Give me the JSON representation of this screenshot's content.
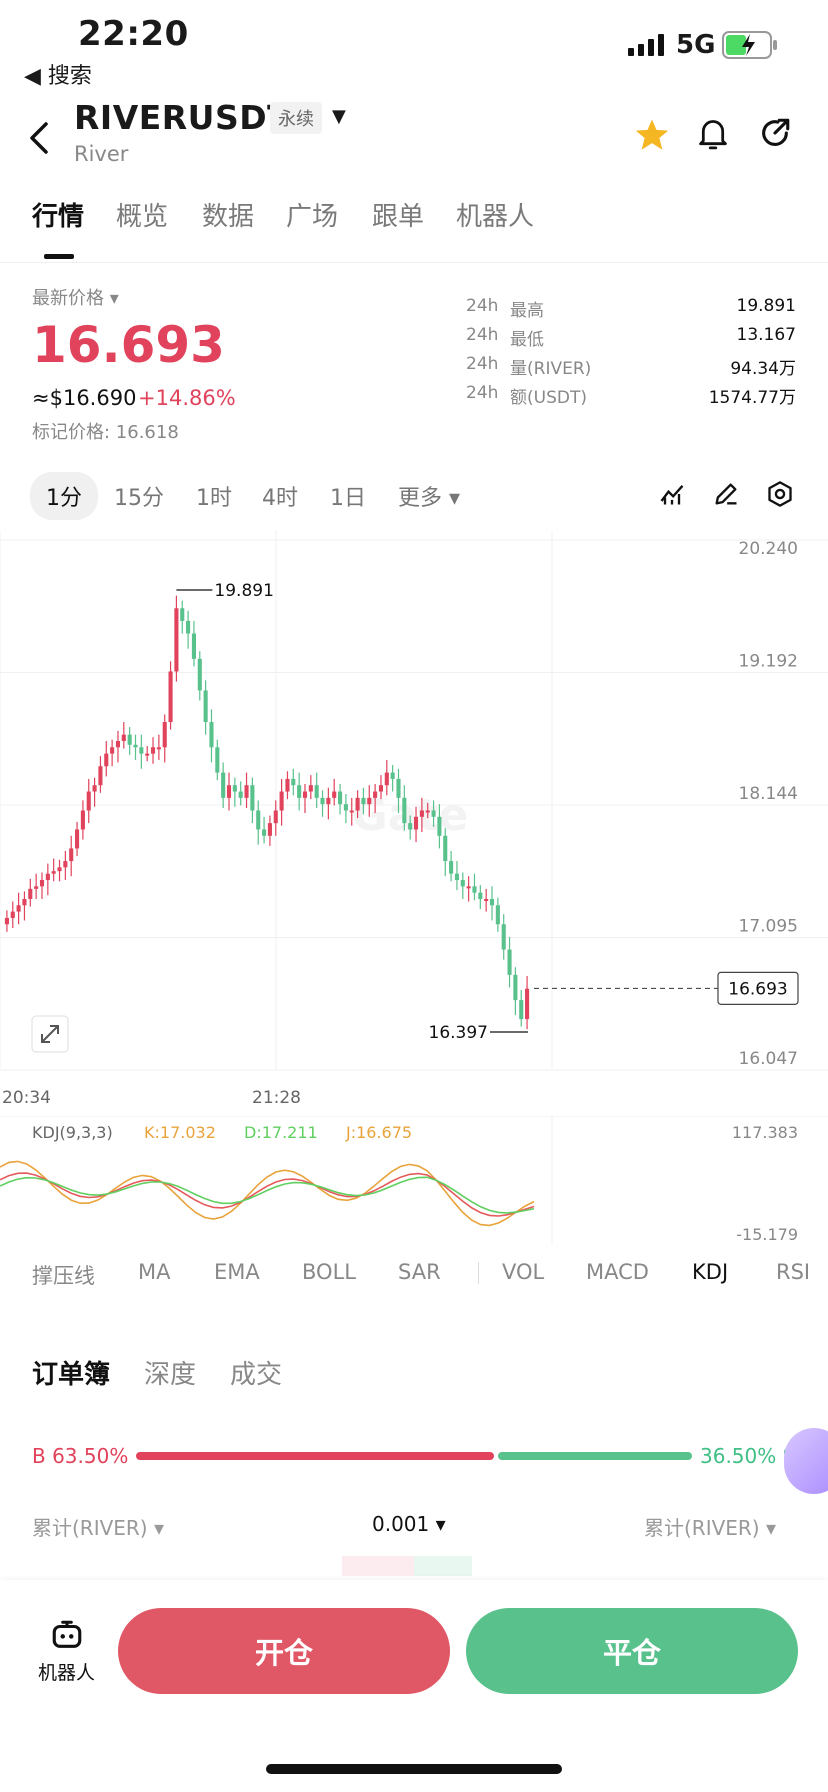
{
  "status": {
    "time": "22:20",
    "back_app": "◀ 搜索",
    "network": "5G"
  },
  "header": {
    "pair": "RIVERUSDT",
    "contract_type": "永续",
    "subtitle": "River"
  },
  "tabs": [
    "行情",
    "概览",
    "数据",
    "广场",
    "跟单",
    "机器人"
  ],
  "price": {
    "label": "最新价格",
    "last": "16.693",
    "usd": "≈$16.690",
    "change": "+14.86%",
    "mark": "标记价格: 16.618"
  },
  "stats": [
    {
      "period": "24h",
      "label": "最高",
      "value": "19.891"
    },
    {
      "period": "24h",
      "label": "最低",
      "value": "13.167"
    },
    {
      "period": "24h",
      "label": "量(RIVER)",
      "value": "94.34万"
    },
    {
      "period": "24h",
      "label": "额(USDT)",
      "value": "1574.77万"
    }
  ],
  "timeframes": [
    "1分",
    "15分",
    "1时",
    "4时",
    "1日",
    "更多"
  ],
  "chart_data": {
    "type": "candlestick",
    "y_ticks": [
      "20.240",
      "19.192",
      "18.144",
      "17.095",
      "16.047"
    ],
    "ylim": [
      16.047,
      20.24
    ],
    "x_ticks": [
      "20:34",
      "21:28"
    ],
    "high_label": "19.891",
    "low_label": "16.397",
    "last_price_label": "16.693",
    "close_series": [
      17.25,
      17.3,
      17.35,
      17.4,
      17.48,
      17.5,
      17.55,
      17.6,
      17.62,
      17.65,
      17.7,
      17.8,
      17.95,
      18.1,
      18.25,
      18.3,
      18.45,
      18.55,
      18.6,
      18.65,
      18.7,
      18.62,
      18.6,
      18.55,
      18.55,
      18.6,
      18.6,
      18.8,
      19.2,
      19.7,
      19.6,
      19.5,
      19.3,
      19.05,
      18.8,
      18.6,
      18.4,
      18.2,
      18.3,
      18.25,
      18.2,
      18.3,
      18.1,
      17.95,
      17.9,
      18.0,
      18.1,
      18.25,
      18.35,
      18.3,
      18.2,
      18.25,
      18.3,
      18.2,
      18.15,
      18.2,
      18.25,
      18.15,
      18.1,
      18.1,
      18.2,
      18.15,
      18.2,
      18.25,
      18.3,
      18.4,
      18.35,
      18.2,
      18.0,
      17.95,
      18.05,
      18.1,
      18.1,
      18.05,
      17.9,
      17.7,
      17.6,
      17.55,
      17.5,
      17.5,
      17.45,
      17.4,
      17.4,
      17.35,
      17.2,
      17.0,
      16.8,
      16.6,
      16.45,
      16.69
    ],
    "kdj": {
      "params": "KDJ(9,3,3)",
      "K": "K:17.032",
      "D": "D:17.211",
      "J": "J:16.675",
      "y_max": "117.383",
      "y_min": "-15.179"
    }
  },
  "indicators": [
    "撑压线",
    "MA",
    "EMA",
    "BOLL",
    "SAR",
    "VOL",
    "MACD",
    "KDJ",
    "RSI"
  ],
  "orderbook": {
    "tabs": [
      "订单簿",
      "深度",
      "成交"
    ],
    "buy_ratio": "B 63.50%",
    "sell_ratio": "36.50% S",
    "buy_pct": 63.5,
    "cum_left": "累计(RIVER) ▾",
    "precision": "0.001 ▾",
    "cum_right": "累计(RIVER) ▾"
  },
  "bottom": {
    "robot": "机器人",
    "open": "开仓",
    "close": "平仓"
  },
  "colors": {
    "up": "#58c18c",
    "down": "#e0435b",
    "k_line": "#e8a33b",
    "d_line": "#5fcf5f",
    "j_line": "#e55a5a"
  }
}
